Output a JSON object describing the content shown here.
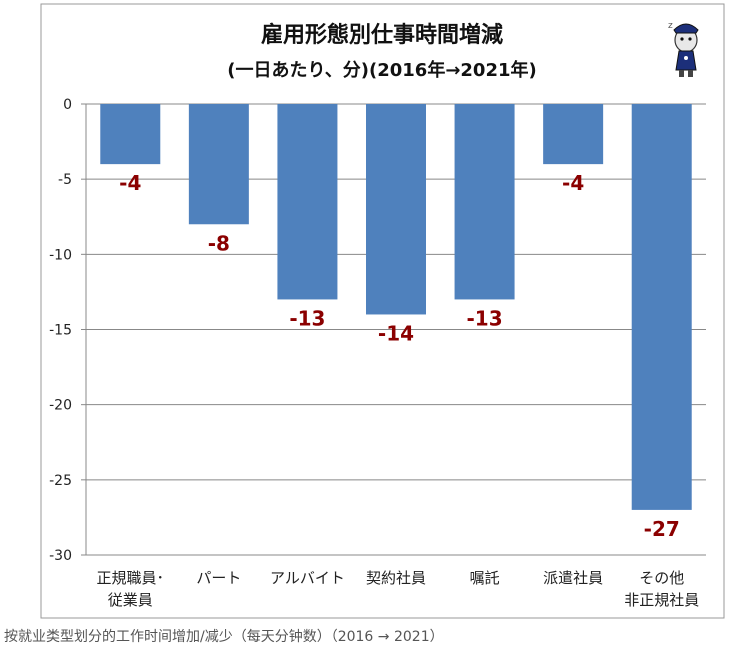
{
  "caption": "按就业类型划分的工作时间增加/减少（每天分钟数）（2016 → 2021）",
  "chart_data": {
    "type": "bar",
    "title": "雇用形態別仕事時間増減",
    "subtitle": "(一日あたり、分)(2016年→2021年)",
    "categories": [
      [
        "正規職員･",
        "従業員"
      ],
      [
        "パート"
      ],
      [
        "アルバイト"
      ],
      [
        "契約社員"
      ],
      [
        "嘱託"
      ],
      [
        "派遣社員"
      ],
      [
        "その他",
        "非正規社員"
      ]
    ],
    "values": [
      -4,
      -8,
      -13,
      -14,
      -13,
      -4,
      -27
    ],
    "data_labels": [
      "-4",
      "-8",
      "-13",
      "-14",
      "-13",
      "-4",
      "-27"
    ],
    "ylim": [
      -30,
      0
    ],
    "yticks": [
      0,
      -5,
      -10,
      -15,
      -20,
      -25,
      -30
    ],
    "ytick_labels": [
      "0",
      "-5",
      "-10",
      "-15",
      "-20",
      "-25",
      "-30"
    ],
    "grid": true,
    "legend": "none",
    "colors": {
      "bar": "#4f81bd",
      "label": "#8b0000",
      "grid": "#888888",
      "axis": "#888888",
      "frame": "#999999"
    }
  }
}
